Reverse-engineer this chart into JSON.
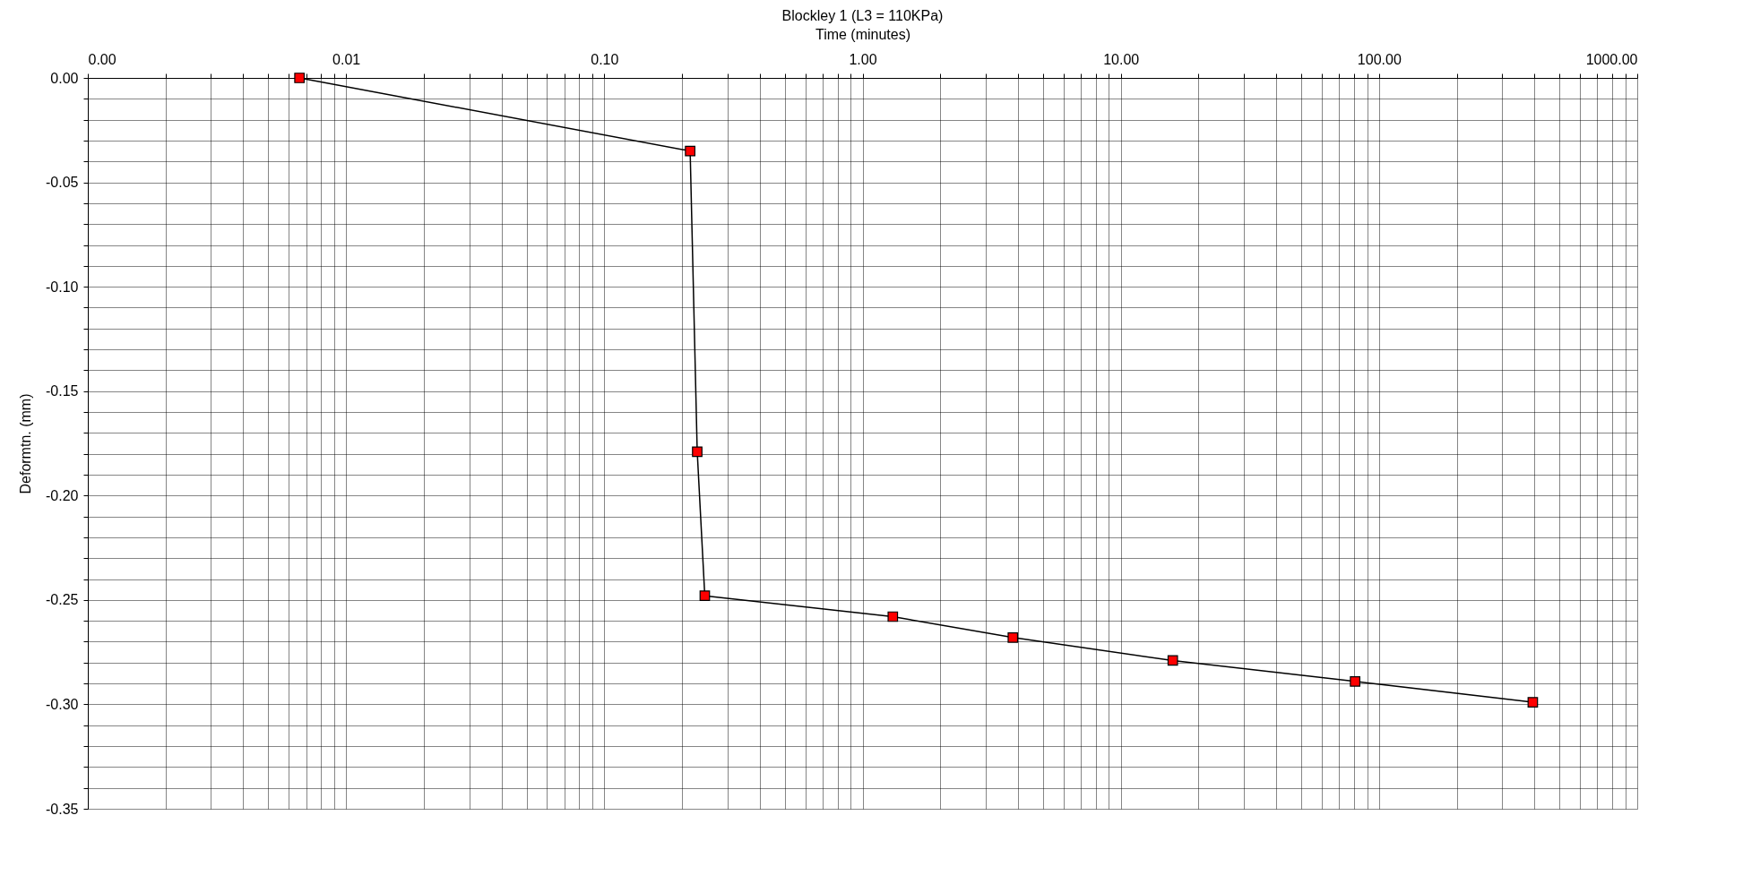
{
  "chart_data": {
    "type": "line",
    "title": "Blockley 1 (L3 = 110KPa)",
    "xlabel": "Time (minutes)",
    "ylabel": "Deformtn. (mm)",
    "log": "x",
    "grid": true,
    "marker": "square",
    "line_style": "solid",
    "x": [
      0.0066,
      0.215,
      0.229,
      0.245,
      1.31,
      3.82,
      15.9,
      80.8,
      394
    ],
    "series": [
      {
        "color": "#ff0000",
        "values": [
          0,
          -0.035,
          -0.179,
          -0.248,
          -0.258,
          -0.268,
          -0.279,
          -0.289,
          -0.299
        ]
      }
    ],
    "xlim": [
      0.001,
      1000
    ],
    "xticks": [
      {
        "value": 0.001,
        "label": "0.00"
      },
      {
        "value": 0.01,
        "label": "0.01"
      },
      {
        "value": 0.1,
        "label": "0.10"
      },
      {
        "value": 1,
        "label": "1.00"
      },
      {
        "value": 10,
        "label": "10.00"
      },
      {
        "value": 100,
        "label": "100.00"
      },
      {
        "value": 1000,
        "label": "1000.00"
      },
      {
        "value": 0.002,
        "label": null
      },
      {
        "value": 0.003,
        "label": null
      },
      {
        "value": 0.004,
        "label": null
      },
      {
        "value": 0.005,
        "label": null
      },
      {
        "value": 0.006,
        "label": null
      },
      {
        "value": 0.007,
        "label": null
      },
      {
        "value": 0.008,
        "label": null
      },
      {
        "value": 0.009,
        "label": null
      },
      {
        "value": 0.02,
        "label": null
      },
      {
        "value": 0.03,
        "label": null
      },
      {
        "value": 0.04,
        "label": null
      },
      {
        "value": 0.05,
        "label": null
      },
      {
        "value": 0.06,
        "label": null
      },
      {
        "value": 0.07,
        "label": null
      },
      {
        "value": 0.08,
        "label": null
      },
      {
        "value": 0.09,
        "label": null
      },
      {
        "value": 0.2,
        "label": null
      },
      {
        "value": 0.3,
        "label": null
      },
      {
        "value": 0.4,
        "label": null
      },
      {
        "value": 0.5,
        "label": null
      },
      {
        "value": 0.6,
        "label": null
      },
      {
        "value": 0.7,
        "label": null
      },
      {
        "value": 0.8,
        "label": null
      },
      {
        "value": 0.9,
        "label": null
      },
      {
        "value": 2,
        "label": null
      },
      {
        "value": 3,
        "label": null
      },
      {
        "value": 4,
        "label": null
      },
      {
        "value": 5,
        "label": null
      },
      {
        "value": 6,
        "label": null
      },
      {
        "value": 7,
        "label": null
      },
      {
        "value": 8,
        "label": null
      },
      {
        "value": 9,
        "label": null
      },
      {
        "value": 20,
        "label": null
      },
      {
        "value": 30,
        "label": null
      },
      {
        "value": 40,
        "label": null
      },
      {
        "value": 50,
        "label": null
      },
      {
        "value": 60,
        "label": null
      },
      {
        "value": 70,
        "label": null
      },
      {
        "value": 80,
        "label": null
      },
      {
        "value": 90,
        "label": null
      },
      {
        "value": 200,
        "label": null
      },
      {
        "value": 300,
        "label": null
      },
      {
        "value": 400,
        "label": null
      },
      {
        "value": 500,
        "label": null
      },
      {
        "value": 600,
        "label": null
      },
      {
        "value": 700,
        "label": null
      },
      {
        "value": 800,
        "label": null
      },
      {
        "value": 900,
        "label": null
      }
    ],
    "ylim": [
      -0.35,
      0
    ],
    "yticks": [
      {
        "value": 0,
        "label": "0.00"
      },
      {
        "value": -0.05,
        "label": "-0.05"
      },
      {
        "value": -0.1,
        "label": "-0.10"
      },
      {
        "value": -0.15,
        "label": "-0.15"
      },
      {
        "value": -0.2,
        "label": "-0.20"
      },
      {
        "value": -0.25,
        "label": "-0.25"
      },
      {
        "value": -0.3,
        "label": "-0.30"
      },
      {
        "value": -0.35,
        "label": "-0.35"
      },
      {
        "value": -0.01,
        "label": null
      },
      {
        "value": -0.02,
        "label": null
      },
      {
        "value": -0.03,
        "label": null
      },
      {
        "value": -0.04,
        "label": null
      },
      {
        "value": -0.06,
        "label": null
      },
      {
        "value": -0.07,
        "label": null
      },
      {
        "value": -0.08,
        "label": null
      },
      {
        "value": -0.09,
        "label": null
      },
      {
        "value": -0.11,
        "label": null
      },
      {
        "value": -0.12,
        "label": null
      },
      {
        "value": -0.13,
        "label": null
      },
      {
        "value": -0.14,
        "label": null
      },
      {
        "value": -0.16,
        "label": null
      },
      {
        "value": -0.17,
        "label": null
      },
      {
        "value": -0.18,
        "label": null
      },
      {
        "value": -0.19,
        "label": null
      },
      {
        "value": -0.21,
        "label": null
      },
      {
        "value": -0.22,
        "label": null
      },
      {
        "value": -0.23,
        "label": null
      },
      {
        "value": -0.24,
        "label": null
      },
      {
        "value": -0.26,
        "label": null
      },
      {
        "value": -0.27,
        "label": null
      },
      {
        "value": -0.28,
        "label": null
      },
      {
        "value": -0.29,
        "label": null
      },
      {
        "value": -0.31,
        "label": null
      },
      {
        "value": -0.32,
        "label": null
      },
      {
        "value": -0.33,
        "label": null
      },
      {
        "value": -0.34,
        "label": null
      }
    ]
  }
}
